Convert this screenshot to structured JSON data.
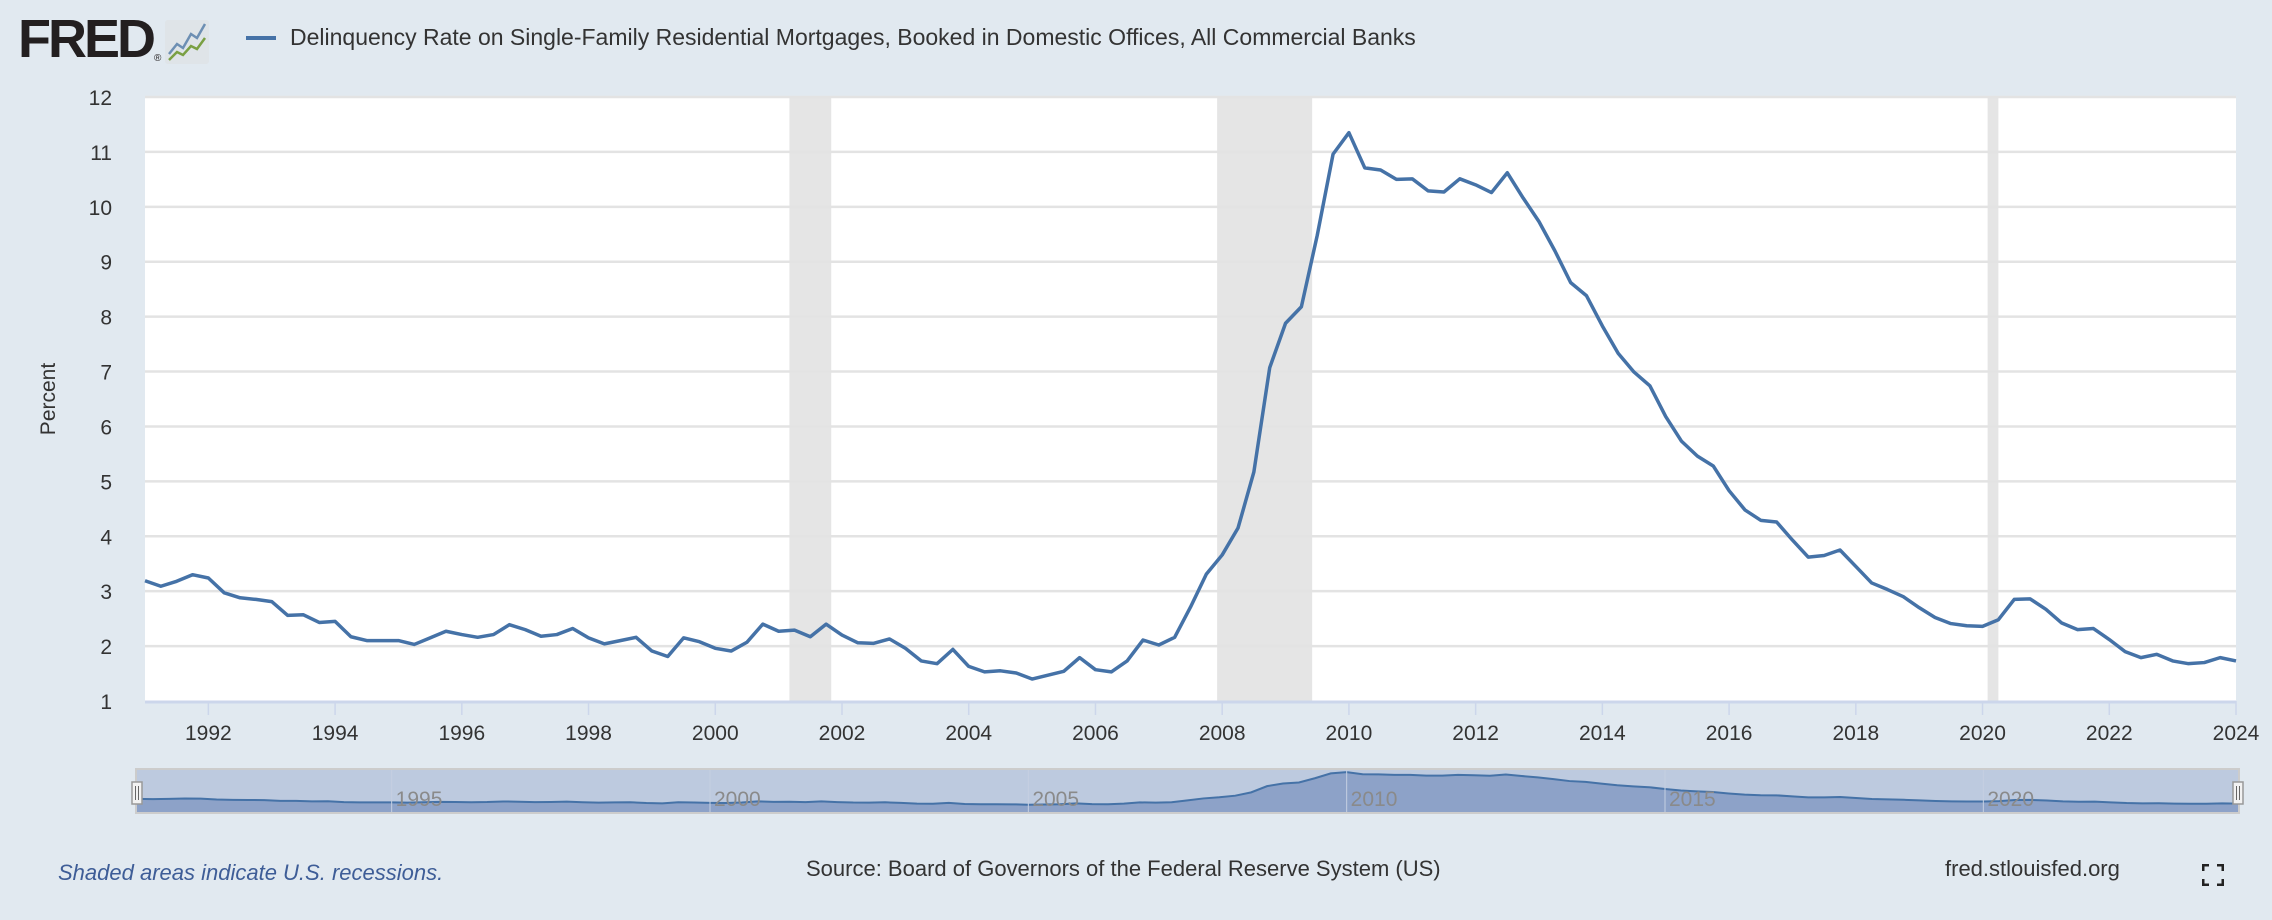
{
  "logo": {
    "text": "FRED",
    "mark": "®"
  },
  "chart_data": {
    "type": "line",
    "title": "Delinquency Rate on Single-Family Residential Mortgages, Booked in Domestic Offices, All Commercial Banks",
    "xlabel": "",
    "ylabel": "Percent",
    "ylim": [
      1,
      12
    ],
    "xlim": [
      1991.0,
      2024.0
    ],
    "yticks": [
      "1",
      "2",
      "3",
      "4",
      "5",
      "6",
      "7",
      "8",
      "9",
      "10",
      "11",
      "12"
    ],
    "xticks": [
      "1992",
      "1994",
      "1996",
      "1998",
      "2000",
      "2002",
      "2004",
      "2006",
      "2008",
      "2010",
      "2012",
      "2014",
      "2016",
      "2018",
      "2020",
      "2022",
      "2024"
    ],
    "grid": true,
    "frequency": "quarterly",
    "start": 1991.0,
    "series": [
      {
        "name": "Delinquency Rate on Single-Family Residential Mortgages, Booked in Domestic Offices, All Commercial Banks",
        "color": "#4572a7",
        "values": [
          3.19,
          3.09,
          3.18,
          3.3,
          3.24,
          2.97,
          2.88,
          2.85,
          2.81,
          2.56,
          2.57,
          2.43,
          2.45,
          2.17,
          2.1,
          2.1,
          2.1,
          2.03,
          2.15,
          2.27,
          2.21,
          2.16,
          2.21,
          2.39,
          2.3,
          2.18,
          2.21,
          2.32,
          2.15,
          2.04,
          2.1,
          2.16,
          1.91,
          1.81,
          2.15,
          2.08,
          1.96,
          1.91,
          2.07,
          2.4,
          2.27,
          2.29,
          2.17,
          2.4,
          2.2,
          2.06,
          2.05,
          2.13,
          1.96,
          1.73,
          1.68,
          1.94,
          1.63,
          1.53,
          1.55,
          1.51,
          1.4,
          1.47,
          1.54,
          1.79,
          1.57,
          1.53,
          1.73,
          2.11,
          2.02,
          2.16,
          2.71,
          3.31,
          3.66,
          4.15,
          5.17,
          7.07,
          7.88,
          8.18,
          9.48,
          10.96,
          11.35,
          10.71,
          10.67,
          10.5,
          10.51,
          10.29,
          10.27,
          10.51,
          10.4,
          10.26,
          10.62,
          10.16,
          9.73,
          9.2,
          8.62,
          8.38,
          7.83,
          7.33,
          6.99,
          6.74,
          6.18,
          5.73,
          5.46,
          5.28,
          4.83,
          4.48,
          4.29,
          4.26,
          3.93,
          3.62,
          3.65,
          3.75,
          3.45,
          3.15,
          3.03,
          2.9,
          2.7,
          2.52,
          2.41,
          2.37,
          2.36,
          2.48,
          2.85,
          2.86,
          2.67,
          2.42,
          2.3,
          2.32,
          2.12,
          1.9,
          1.79,
          1.85,
          1.73,
          1.68,
          1.7,
          1.79,
          1.73
        ]
      }
    ],
    "recessions": [
      [
        2001.17,
        2001.83
      ],
      [
        2007.92,
        2009.42
      ],
      [
        2020.08,
        2020.25
      ]
    ],
    "navigator_labels": [
      "1995",
      "2000",
      "2005",
      "2010",
      "2015",
      "2020"
    ],
    "recession_color": "#e5e5e5"
  },
  "footer": {
    "shaded_note": "Shaded areas indicate U.S. recessions.",
    "source": "Source: Board of Governors of the Federal Reserve System (US)",
    "site": "fred.stlouisfed.org"
  }
}
